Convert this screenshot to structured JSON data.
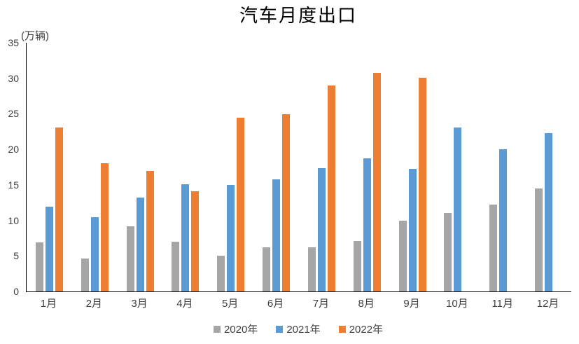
{
  "chart_data": {
    "type": "bar",
    "title": "汽车月度出口",
    "unit_label": "(万辆)",
    "categories": [
      "1月",
      "2月",
      "3月",
      "4月",
      "5月",
      "6月",
      "7月",
      "8月",
      "9月",
      "10月",
      "11月",
      "12月"
    ],
    "series": [
      {
        "name": "2020年",
        "color": "#A5A5A5",
        "values": [
          6.9,
          4.6,
          9.2,
          7.0,
          5.0,
          6.2,
          6.2,
          7.1,
          10.0,
          11.0,
          12.2,
          14.5
        ]
      },
      {
        "name": "2021年",
        "color": "#5B9BD5",
        "values": [
          11.9,
          10.5,
          13.2,
          15.1,
          15.0,
          15.8,
          17.4,
          18.7,
          17.3,
          23.1,
          20.0,
          22.3
        ]
      },
      {
        "name": "2022年",
        "color": "#ED7D31",
        "values": [
          23.1,
          18.0,
          17.0,
          14.1,
          24.5,
          24.9,
          29.0,
          30.8,
          30.1,
          null,
          null,
          null
        ]
      }
    ],
    "xlabel": "",
    "ylabel": "",
    "ylim": [
      0,
      35
    ],
    "yticks": [
      0,
      5,
      10,
      15,
      20,
      25,
      30,
      35
    ],
    "grid": false,
    "legend_position": "bottom",
    "axis_color": "#000000",
    "text_color": "#3f3f3f",
    "title_color": "#000000"
  }
}
